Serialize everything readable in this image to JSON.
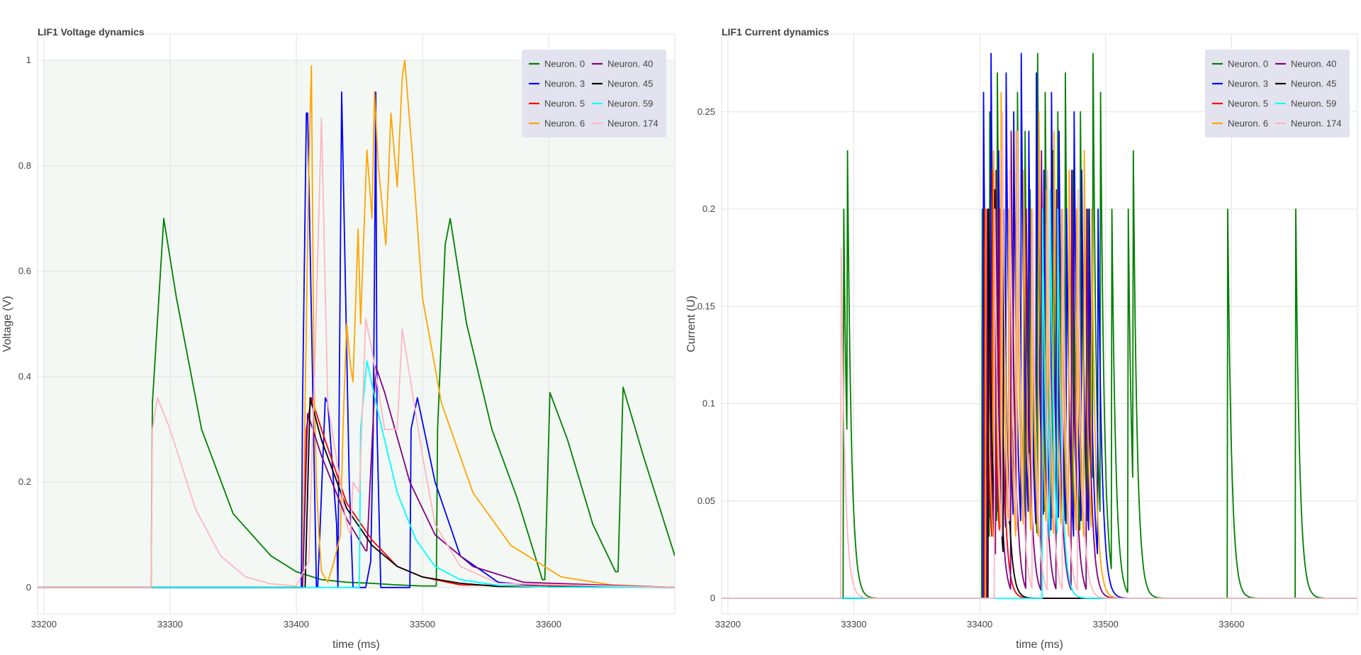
{
  "colors": {
    "neuron_0": "#008000",
    "neuron_3": "#0000ff",
    "neuron_5": "#ff0000",
    "neuron_6": "#ffa500",
    "neuron_40": "#800080",
    "neuron_45": "#000000",
    "neuron_59": "#00ffff",
    "neuron_174": "#ffb6c1",
    "legend_bg": "#e2e3ee",
    "voltage_bg": "#f3f8f4"
  },
  "chart_data": [
    {
      "type": "line",
      "title": "LIF1 Voltage dynamics",
      "xlabel": "time (ms)",
      "ylabel": "Voltage (V)",
      "xlim": [
        33195,
        33700
      ],
      "ylim": [
        -0.05,
        1.05
      ],
      "xticks": [
        "33200",
        "33300",
        "33400",
        "33500",
        "33600"
      ],
      "xtick_values": [
        33200,
        33300,
        33400,
        33500,
        33600
      ],
      "yticks": [
        "0",
        "0.2",
        "0.4",
        "0.6",
        "0.8",
        "1"
      ],
      "ytick_values": [
        0,
        0.2,
        0.4,
        0.6,
        0.8,
        1
      ],
      "grid": true,
      "legend_position": "top-right",
      "legend": [
        "Neuron. 0",
        "Neuron. 3",
        "Neuron. 5",
        "Neuron. 6",
        "Neuron. 40",
        "Neuron. 45",
        "Neuron. 59",
        "Neuron. 174"
      ],
      "threshold_band": [
        0,
        1
      ],
      "series": [
        {
          "name": "Neuron. 0",
          "color": "#008000",
          "x": [
            33195,
            33285,
            33286,
            33295,
            33305,
            33325,
            33350,
            33380,
            33400,
            33420,
            33440,
            33460,
            33480,
            33500,
            33511,
            33512,
            33518,
            33522,
            33535,
            33555,
            33575,
            33595,
            33597,
            33601,
            33615,
            33635,
            33653,
            33655,
            33659,
            33675,
            33700
          ],
          "y": [
            0,
            0,
            0.35,
            0.7,
            0.55,
            0.3,
            0.14,
            0.06,
            0.03,
            0.015,
            0.01,
            0.008,
            0.005,
            0.003,
            0.003,
            0.3,
            0.65,
            0.7,
            0.5,
            0.3,
            0.17,
            0.015,
            0.015,
            0.37,
            0.28,
            0.12,
            0.03,
            0.03,
            0.38,
            0.25,
            0.06
          ]
        },
        {
          "name": "Neuron. 3",
          "color": "#0000ff",
          "x": [
            33195,
            33404,
            33405,
            33408,
            33409,
            33416,
            33417,
            33423,
            33425,
            33432,
            33433,
            33434,
            33436,
            33442,
            33445,
            33455,
            33459,
            33461,
            33462,
            33463,
            33464,
            33467,
            33470,
            33490,
            33491,
            33496,
            33510,
            33530,
            33560,
            33600,
            33700
          ],
          "y": [
            0,
            0,
            0.35,
            0.9,
            0.9,
            0,
            0,
            0.36,
            0.35,
            0.12,
            0,
            0.35,
            0.94,
            0.2,
            0,
            0,
            0.05,
            0.3,
            0.6,
            0.94,
            0.3,
            0,
            0,
            0,
            0.3,
            0.36,
            0.2,
            0.06,
            0.01,
            0.002,
            0
          ]
        },
        {
          "name": "Neuron. 5",
          "color": "#ff0000",
          "x": [
            33195,
            33405,
            33408,
            33412,
            33420,
            33440,
            33460,
            33480,
            33500,
            33530,
            33700
          ],
          "y": [
            0,
            0,
            0.3,
            0.36,
            0.3,
            0.16,
            0.09,
            0.04,
            0.02,
            0.005,
            0
          ]
        },
        {
          "name": "Neuron. 6",
          "color": "#ffa500",
          "x": [
            33195,
            33405,
            33407,
            33410,
            33412,
            33414,
            33416,
            33418,
            33420,
            33425,
            33430,
            33435,
            33437,
            33440,
            33443,
            33445,
            33449,
            33451,
            33456,
            33460,
            33462,
            33465,
            33471,
            33475,
            33480,
            33484,
            33486,
            33492,
            33500,
            33515,
            33540,
            33570,
            33610,
            33650,
            33700
          ],
          "y": [
            0,
            0,
            0.35,
            0.8,
            0.99,
            0.4,
            0.2,
            0.1,
            0.03,
            0.01,
            0.05,
            0.1,
            0.3,
            0.5,
            0.42,
            0.39,
            0.68,
            0.5,
            0.83,
            0.7,
            0.94,
            0.8,
            0.65,
            0.9,
            0.76,
            0.97,
            1.0,
            0.82,
            0.55,
            0.35,
            0.18,
            0.08,
            0.02,
            0.005,
            0
          ]
        },
        {
          "name": "Neuron. 40",
          "color": "#800080",
          "x": [
            33195,
            33405,
            33409,
            33420,
            33440,
            33455,
            33456,
            33463,
            33470,
            33490,
            33510,
            33540,
            33580,
            33700
          ],
          "y": [
            0,
            0,
            0.33,
            0.25,
            0.13,
            0.07,
            0.07,
            0.42,
            0.37,
            0.2,
            0.1,
            0.04,
            0.01,
            0
          ]
        },
        {
          "name": "Neuron. 45",
          "color": "#000000",
          "x": [
            33195,
            33407,
            33411,
            33420,
            33440,
            33460,
            33480,
            33500,
            33530,
            33560,
            33700
          ],
          "y": [
            0,
            0,
            0.36,
            0.28,
            0.15,
            0.08,
            0.04,
            0.02,
            0.008,
            0.002,
            0
          ]
        },
        {
          "name": "Neuron. 59",
          "color": "#00ffff",
          "x": [
            33195,
            33450,
            33451,
            33456,
            33465,
            33480,
            33495,
            33510,
            33530,
            33560,
            33600,
            33700
          ],
          "y": [
            0,
            0,
            0.3,
            0.43,
            0.33,
            0.18,
            0.09,
            0.04,
            0.015,
            0.004,
            0.001,
            0
          ]
        },
        {
          "name": "Neuron. 174",
          "color": "#ffb6c1",
          "x": [
            33195,
            33285,
            33286,
            33290,
            33300,
            33320,
            33340,
            33360,
            33380,
            33400,
            33410,
            33415,
            33420,
            33425,
            33440,
            33443,
            33445,
            33450,
            33455,
            33460,
            33470,
            33480,
            33484,
            33490,
            33500,
            33510,
            33530,
            33560,
            33700
          ],
          "y": [
            0,
            0,
            0.3,
            0.36,
            0.3,
            0.15,
            0.06,
            0.02,
            0.007,
            0.003,
            0.05,
            0.45,
            0.89,
            0.35,
            0.12,
            0.1,
            0.2,
            0.18,
            0.51,
            0.45,
            0.3,
            0.3,
            0.49,
            0.4,
            0.25,
            0.12,
            0.04,
            0.008,
            0
          ]
        }
      ]
    },
    {
      "type": "line",
      "title": "LIF1 Current dynamics",
      "xlabel": "time (ms)",
      "ylabel": "Current (U)",
      "xlim": [
        33195,
        33700
      ],
      "ylim": [
        -0.008,
        0.29
      ],
      "xticks": [
        "33200",
        "33300",
        "33400",
        "33500",
        "33600"
      ],
      "xtick_values": [
        33200,
        33300,
        33400,
        33500,
        33600
      ],
      "yticks": [
        "0",
        "0.05",
        "0.1",
        "0.15",
        "0.2",
        "0.25"
      ],
      "ytick_values": [
        0,
        0.05,
        0.1,
        0.15,
        0.2,
        0.25
      ],
      "grid": true,
      "legend_position": "top-right",
      "legend": [
        "Neuron. 0",
        "Neuron. 3",
        "Neuron. 5",
        "Neuron. 6",
        "Neuron. 40",
        "Neuron. 45",
        "Neuron. 59",
        "Neuron. 174"
      ],
      "series": [
        {
          "name": "Neuron. 0",
          "color": "#008000",
          "spikes": [
            33292,
            33295,
            33402,
            33408,
            33414,
            33418,
            33424,
            33430,
            33436,
            33440,
            33446,
            33452,
            33458,
            33462,
            33468,
            33474,
            33480,
            33486,
            33490,
            33496,
            33505,
            33518,
            33522,
            33597,
            33651
          ],
          "peaks": [
            0.2,
            0.23,
            0.2,
            0.25,
            0.27,
            0.24,
            0.22,
            0.26,
            0.24,
            0.21,
            0.28,
            0.26,
            0.23,
            0.25,
            0.27,
            0.22,
            0.25,
            0.2,
            0.28,
            0.26,
            0.2,
            0.2,
            0.23,
            0.2,
            0.2
          ],
          "decay_ms": 3
        },
        {
          "name": "Neuron. 3",
          "color": "#0000ff",
          "spikes": [
            33403,
            33409,
            33415,
            33421,
            33427,
            33433,
            33439,
            33445,
            33451,
            33457,
            33463,
            33469,
            33475,
            33481,
            33487,
            33494
          ],
          "peaks": [
            0.26,
            0.28,
            0.23,
            0.27,
            0.25,
            0.28,
            0.24,
            0.27,
            0.22,
            0.26,
            0.24,
            0.2,
            0.25,
            0.22,
            0.2,
            0.2
          ],
          "decay_ms": 3
        },
        {
          "name": "Neuron. 5",
          "color": "#ff0000",
          "spikes": [
            33404,
            33410,
            33416
          ],
          "peaks": [
            0.2,
            0.22,
            0.2
          ],
          "decay_ms": 3
        },
        {
          "name": "Neuron. 6",
          "color": "#ffa500",
          "spikes": [
            33405,
            33411,
            33417,
            33423,
            33429,
            33435,
            33441,
            33447,
            33453,
            33459,
            33465,
            33471,
            33477,
            33483,
            33489
          ],
          "peaks": [
            0.2,
            0.23,
            0.26,
            0.2,
            0.24,
            0.22,
            0.2,
            0.25,
            0.21,
            0.24,
            0.2,
            0.22,
            0.2,
            0.23,
            0.2
          ],
          "decay_ms": 3
        },
        {
          "name": "Neuron. 40",
          "color": "#800080",
          "spikes": [
            33406,
            33413,
            33425,
            33437,
            33449,
            33461,
            33473,
            33485
          ],
          "peaks": [
            0.2,
            0.22,
            0.24,
            0.2,
            0.23,
            0.21,
            0.22,
            0.2
          ],
          "decay_ms": 3
        },
        {
          "name": "Neuron. 45",
          "color": "#000000",
          "spikes": [
            33407,
            33412,
            33419
          ],
          "peaks": [
            0.2,
            0.21,
            0.2
          ],
          "decay_ms": 3
        },
        {
          "name": "Neuron. 59",
          "color": "#00ffff",
          "spikes": [
            33450,
            33456,
            33462
          ],
          "peaks": [
            0.2,
            0.21,
            0.2
          ],
          "decay_ms": 3
        },
        {
          "name": "Neuron. 174",
          "color": "#ffb6c1",
          "spikes": [
            33290,
            33412,
            33418,
            33424,
            33430,
            33442,
            33454,
            33466,
            33478
          ],
          "peaks": [
            0.18,
            0.2,
            0.25,
            0.22,
            0.24,
            0.2,
            0.22,
            0.2,
            0.21
          ],
          "decay_ms": 3
        }
      ]
    }
  ]
}
